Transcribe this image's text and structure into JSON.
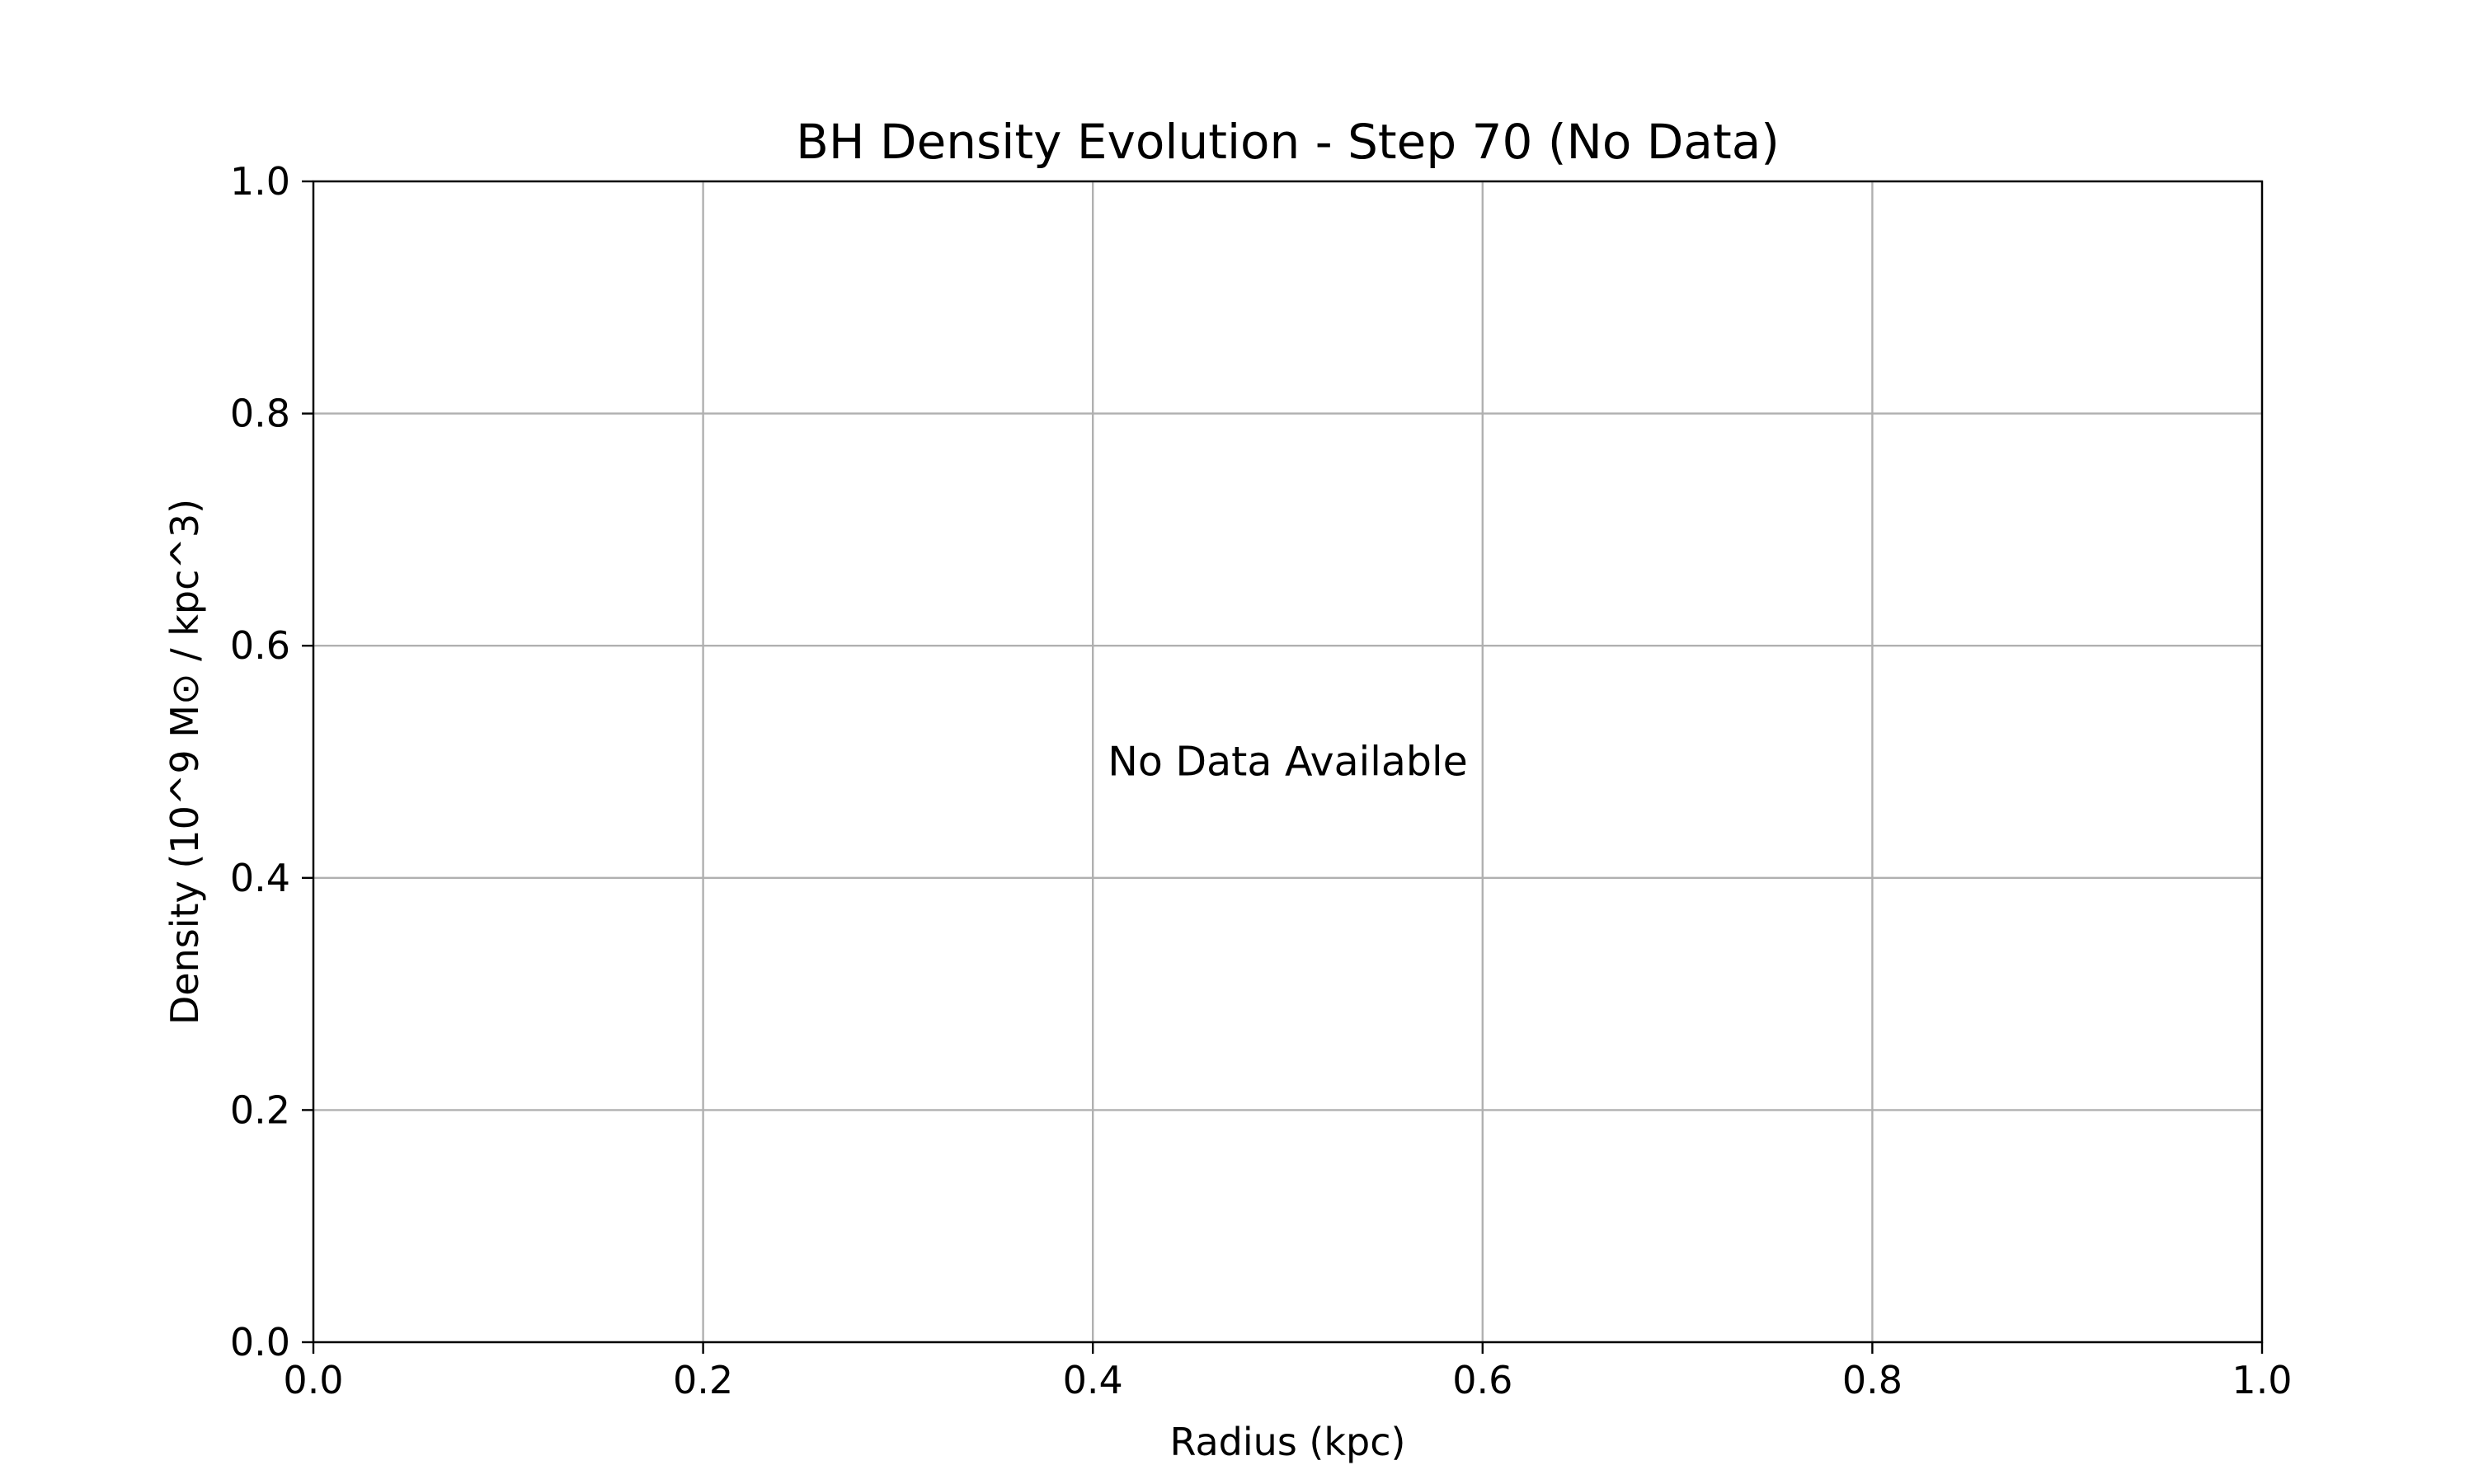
{
  "chart_data": {
    "type": "line",
    "title": "BH Density Evolution - Step 70 (No Data)",
    "xlabel": "Radius (kpc)",
    "ylabel": "Density (10^9 M⊙ / kpc^3)",
    "xlim": [
      0.0,
      1.0
    ],
    "ylim": [
      0.0,
      1.0
    ],
    "x_ticks": [
      0.0,
      0.2,
      0.4,
      0.6,
      0.8,
      1.0
    ],
    "y_ticks": [
      0.0,
      0.2,
      0.4,
      0.6,
      0.8,
      1.0
    ],
    "x_tick_labels": [
      "0.0",
      "0.2",
      "0.4",
      "0.6",
      "0.8",
      "1.0"
    ],
    "y_tick_labels": [
      "0.0",
      "0.2",
      "0.4",
      "0.6",
      "0.8",
      "1.0"
    ],
    "grid": true,
    "series": [],
    "annotations": [
      {
        "text": "No Data Available",
        "x": 0.5,
        "y": 0.5
      }
    ],
    "colors": {
      "grid": "#b0b0b0",
      "axes": "#000000",
      "background": "#ffffff"
    }
  }
}
